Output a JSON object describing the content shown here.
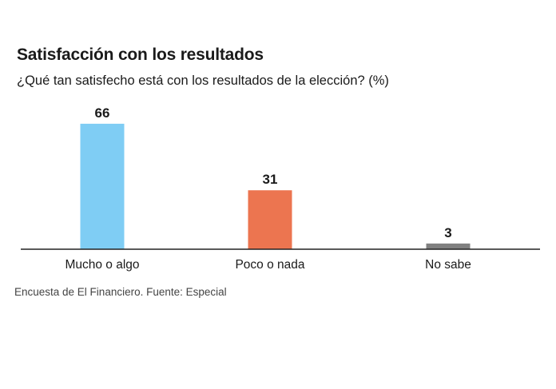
{
  "header": {
    "title": "Satisfacción con los resultados",
    "subtitle": "¿Qué tan satisfecho está con los resultados de la elección? (%)"
  },
  "footer": {
    "source": "Encuesta de El Financiero. Fuente: Especial"
  },
  "chart_data": {
    "type": "bar",
    "title": "Satisfacción con los resultados",
    "subtitle": "¿Qué tan satisfecho está con los resultados de la elección? (%)",
    "categories": [
      "Mucho o algo",
      "Poco o nada",
      "No sabe"
    ],
    "values": [
      66,
      31,
      3
    ],
    "colors": [
      "#7fcdf4",
      "#ec7550",
      "#808080"
    ],
    "ylim": [
      0,
      70
    ],
    "grid": false,
    "legend": "none",
    "data_labels": true
  }
}
